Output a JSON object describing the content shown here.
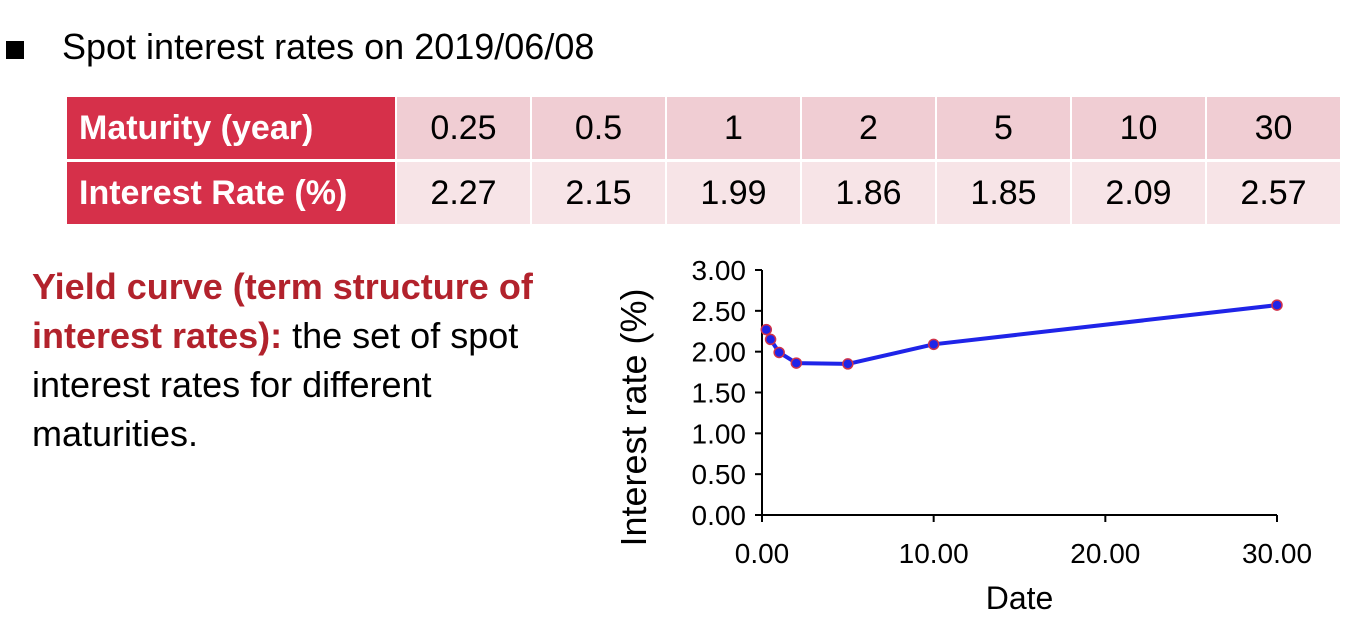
{
  "heading": "Spot interest rates on 2019/06/08",
  "table": {
    "row1_label": "Maturity (year)",
    "row2_label": "Interest Rate (%)",
    "maturities": [
      "0.25",
      "0.5",
      "1",
      "2",
      "5",
      "10",
      "30"
    ],
    "rates": [
      "2.27",
      "2.15",
      "1.99",
      "1.86",
      "1.85",
      "2.09",
      "2.57"
    ]
  },
  "description": {
    "term": "Yield curve (term structure of interest rates):",
    "text": " the set of spot interest rates for different maturities."
  },
  "colors": {
    "header_red": "#d6304a",
    "row1_pink": "#f0cdd3",
    "row2_pink": "#f7e4e7",
    "term_red": "#b2222c",
    "line_blue": "#1f24e8",
    "marker_red": "#d0324a"
  },
  "chart_data": {
    "type": "line",
    "xlabel": "Date",
    "ylabel": "Interest rate (%)",
    "xlim": [
      0,
      30
    ],
    "ylim": [
      0,
      3
    ],
    "xticks": [
      "0.00",
      "10.00",
      "20.00",
      "30.00"
    ],
    "yticks": [
      "0.00",
      "0.50",
      "1.00",
      "1.50",
      "2.00",
      "2.50",
      "3.00"
    ],
    "x": [
      0.25,
      0.5,
      1,
      2,
      5,
      10,
      30
    ],
    "series": [
      {
        "values": [
          2.27,
          2.15,
          1.99,
          1.86,
          1.85,
          2.09,
          2.57
        ]
      }
    ],
    "grid": false,
    "legend": "none"
  }
}
